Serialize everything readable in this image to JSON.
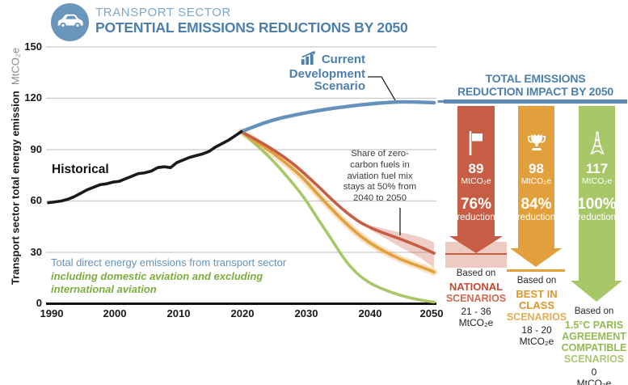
{
  "header": {
    "category": "TRANSPORT SECTOR",
    "title": "POTENTIAL EMISSIONS REDUCTIONS BY 2050"
  },
  "colors": {
    "title_blue": "#4d7fad",
    "light_blue": "#7ea8c8",
    "line_blue": "#6592bc",
    "red": "#c85d45",
    "orange": "#e1a03c",
    "green": "#a8c768",
    "band_red": "rgba(200,93,69,0.30)",
    "band_orange": "rgba(225,160,60,0.30)",
    "grid": "#cacaca"
  },
  "chart_data": {
    "type": "line",
    "title": "Transport sector potential emissions reductions by 2050",
    "ylabel": "Transport sector total  energy emission",
    "ylabel_unit": "MtCO₂e",
    "xlim": [
      1990,
      2050
    ],
    "ylim": [
      0,
      150
    ],
    "x_ticks": [
      "1990",
      "2000",
      "2010",
      "2020",
      "2030",
      "2040",
      "2050"
    ],
    "y_ticks": [
      "150",
      "120",
      "90",
      "60",
      "30",
      "0"
    ],
    "grid": "horizontal",
    "series": [
      {
        "name": "1.5C Paris Agreement compatible scenarios",
        "color": "#a8c768",
        "width": 3.6,
        "smooth": true,
        "x": [
          2020,
          2022,
          2025,
          2028,
          2030,
          2032,
          2034,
          2036,
          2038,
          2040,
          2042,
          2045,
          2048,
          2050
        ],
        "values": [
          100.5,
          94,
          83.5,
          70.5,
          61,
          49,
          38,
          26,
          17.5,
          12,
          8.5,
          4.5,
          2,
          1
        ]
      },
      {
        "name": "Best in class scenarios",
        "color": "#e1a03c",
        "width": 3.6,
        "smooth": true,
        "halo": true,
        "x": [
          2020,
          2022,
          2025,
          2028,
          2030,
          2032,
          2035,
          2038,
          2040,
          2042,
          2045,
          2048,
          2050
        ],
        "values": [
          100.5,
          95.5,
          88,
          79,
          72,
          63.5,
          51.5,
          41,
          35.5,
          31,
          25.5,
          21.5,
          18.5
        ]
      },
      {
        "name": "National scenarios",
        "color": "#c85d45",
        "width": 3.6,
        "smooth": true,
        "x": [
          2020,
          2022,
          2025,
          2028,
          2030,
          2032,
          2035,
          2038,
          2040,
          2042,
          2045,
          2048,
          2050
        ],
        "values": [
          100.5,
          96.5,
          90,
          82,
          75.5,
          68.5,
          57.5,
          48.5,
          44.5,
          41.5,
          37.5,
          33,
          29.5
        ]
      },
      {
        "name": "Current Development Scenario",
        "color": "#6592bc",
        "width": 4.4,
        "smooth": true,
        "x": [
          2020,
          2022,
          2025,
          2028,
          2030,
          2033,
          2036,
          2040,
          2043,
          2045,
          2048,
          2050
        ],
        "values": [
          100.5,
          103.5,
          107.5,
          110,
          111.5,
          113.5,
          115,
          116.8,
          117.6,
          118,
          117.7,
          117.4
        ]
      },
      {
        "name": "Historical",
        "color": "#1a1a1a",
        "width": 3.6,
        "smooth": false,
        "x": [
          1990,
          1991,
          1992,
          1993,
          1994,
          1995,
          1996,
          1997,
          1998,
          1999,
          2000,
          2001,
          2002,
          2003,
          2004,
          2005,
          2006,
          2007,
          2008,
          2009,
          2010,
          2011,
          2012,
          2013,
          2014,
          2015,
          2016,
          2017,
          2018,
          2019,
          2020
        ],
        "values": [
          59,
          59.5,
          60,
          61,
          62.5,
          64.5,
          66.5,
          68,
          69.5,
          70,
          71,
          71.5,
          73,
          74.5,
          76,
          76.5,
          77.5,
          79.5,
          80,
          79.5,
          82.5,
          84,
          85.5,
          86.5,
          87.5,
          89,
          91.5,
          93.5,
          95.5,
          98,
          100.5
        ]
      }
    ],
    "bands": [
      {
        "name": "national-uncertainty",
        "fill": "rgba(200,93,69,0.30)",
        "x": [
          2040,
          2042,
          2045,
          2048,
          2050
        ],
        "upper": [
          45.8,
          44,
          41.5,
          38.8,
          36
        ],
        "lower": [
          43.2,
          39,
          32.5,
          26.5,
          21
        ]
      }
    ],
    "labels": {
      "historical": "Historical",
      "cds": "Current\nDevelopment\nScenario",
      "annotation": "Share of zero-\ncarbon fuels in\naviation fuel mix\nstays at 50% from\n2040 to 2050",
      "footnote_blue": "Total direct energy emissions from transport sector",
      "footnote_green": "including domestic aviation and excluding\ninternational aviation"
    }
  },
  "panel": {
    "title": "TOTAL EMISSIONS\nREDUCTION IMPACT BY 2050",
    "columns": [
      {
        "icon": "flag",
        "value": "89",
        "unit": "MtCO₂e",
        "percent": "76%",
        "reduction_label": "reduction",
        "based_on": "Based on",
        "scenario_main": "NATIONAL",
        "scenario_sub": "SCENARIOS",
        "range": "21 - 36",
        "range_unit": "MtCO₂e"
      },
      {
        "icon": "trophy",
        "value": "98",
        "unit": "MtCO₂e",
        "percent": "84%",
        "reduction_label": "reduction",
        "based_on": "Based on",
        "scenario_main": "BEST IN\nCLASS",
        "scenario_sub": "SCENARIOS",
        "range": "18 - 20",
        "range_unit": "MtCO₂e"
      },
      {
        "icon": "eiffel-tower",
        "value": "117",
        "unit": "MtCO₂e",
        "percent": "100%",
        "reduction_label": "reduction",
        "based_on": "Based on",
        "scenario_main": "1.5°C PARIS\nAGREEMENT\nCOMPATIBLE",
        "scenario_sub": "SCENARIOS",
        "range": "0",
        "range_unit": "MtCO₂e"
      }
    ]
  }
}
